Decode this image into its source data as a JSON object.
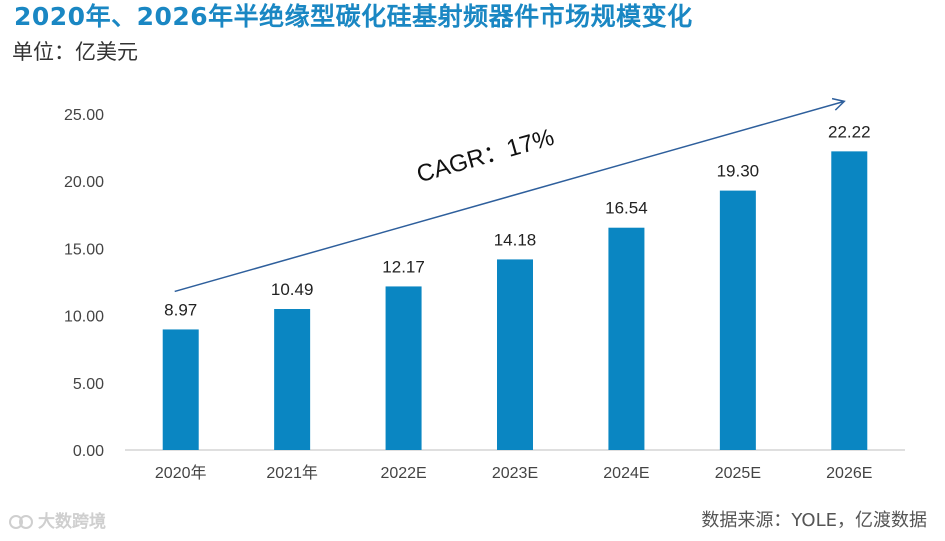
{
  "chart_data": {
    "type": "bar",
    "title": "2020年、2026年半绝缘型碳化硅基射频器件市场规模变化",
    "ylabel": "单位：亿美元",
    "xlabel": "",
    "categories": [
      "2020年",
      "2021年",
      "2022E",
      "2023E",
      "2024E",
      "2025E",
      "2026E"
    ],
    "values": [
      8.97,
      10.49,
      12.17,
      14.18,
      16.54,
      19.3,
      22.22
    ],
    "value_labels": [
      "8.97",
      "10.49",
      "12.17",
      "14.18",
      "16.54",
      "19.30",
      "22.22"
    ],
    "ylim": [
      0,
      25
    ],
    "yticks": [
      0,
      5,
      10,
      15,
      20,
      25
    ],
    "ytick_labels": [
      "0.00",
      "5.00",
      "10.00",
      "15.00",
      "20.00",
      "25.00"
    ],
    "grid": false,
    "bar_color": "#0a86c2",
    "arrow_color": "#2e5f9c",
    "annotation": "CAGR：17%"
  },
  "source": "数据来源：YOLE，亿渡数据",
  "watermark": "大数跨境"
}
